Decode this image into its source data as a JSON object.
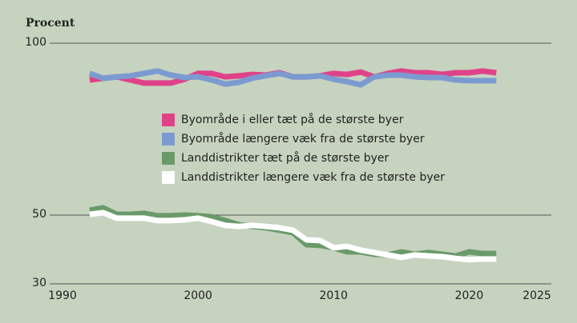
{
  "chart_data": {
    "type": "line",
    "ylabel": "Procent",
    "x": [
      1992,
      1993,
      1994,
      1995,
      1996,
      1997,
      1998,
      1999,
      2000,
      2001,
      2002,
      2003,
      2004,
      2005,
      2006,
      2007,
      2008,
      2009,
      2010,
      2011,
      2012,
      2013,
      2014,
      2015,
      2016,
      2017,
      2018,
      2019,
      2020,
      2021,
      2022
    ],
    "series": [
      {
        "name": "Byområde i eller tæt på de største byer",
        "color": "#e0428a",
        "values": [
          89.3,
          89.8,
          90.2,
          89.3,
          88.4,
          88.4,
          88.4,
          89.5,
          91.2,
          91.2,
          90.2,
          90.5,
          90.9,
          90.7,
          91.4,
          90.2,
          90.2,
          90.5,
          91.2,
          90.9,
          91.6,
          90.2,
          91.2,
          91.9,
          91.4,
          91.4,
          90.9,
          91.4,
          91.4,
          91.9,
          91.4
        ]
      },
      {
        "name": "Byområde længere væk fra de største byer",
        "color": "#7b9bd0",
        "values": [
          91.2,
          89.8,
          90.2,
          90.5,
          91.2,
          91.9,
          90.7,
          90.0,
          90.2,
          89.3,
          88.1,
          88.6,
          89.8,
          90.5,
          91.2,
          90.2,
          90.2,
          90.5,
          89.5,
          88.8,
          87.9,
          90.2,
          90.7,
          90.7,
          90.2,
          90.0,
          90.0,
          89.3,
          89.1,
          89.1,
          89.1
        ]
      },
      {
        "name": "Landdistrikter tæt på de største byer",
        "color": "#6a9a6a",
        "values": [
          51.4,
          52.1,
          50.2,
          50.2,
          50.5,
          49.8,
          49.8,
          50.0,
          49.8,
          49.5,
          48.4,
          47.2,
          46.7,
          46.3,
          45.6,
          44.9,
          41.4,
          41.2,
          40.5,
          39.3,
          39.3,
          38.6,
          38.4,
          39.3,
          38.6,
          39.1,
          38.6,
          38.1,
          39.3,
          38.8,
          38.8
        ]
      },
      {
        "name": "Landdistrikter længere væk fra de største byer",
        "color": "#ffffff",
        "values": [
          50.2,
          50.7,
          49.1,
          49.1,
          49.1,
          48.4,
          48.4,
          48.6,
          49.1,
          48.1,
          47.0,
          46.7,
          47.0,
          46.7,
          46.3,
          45.6,
          42.8,
          42.6,
          40.5,
          40.9,
          39.8,
          39.1,
          38.4,
          37.7,
          38.4,
          38.1,
          37.9,
          37.4,
          37.0,
          37.2,
          37.2
        ]
      }
    ],
    "xlim": [
      1990,
      2025
    ],
    "xticks": [
      1990,
      2000,
      2010,
      2020,
      2025
    ],
    "ylim": [
      30,
      100
    ],
    "yticks": [
      30,
      50,
      100
    ],
    "grid": true
  }
}
